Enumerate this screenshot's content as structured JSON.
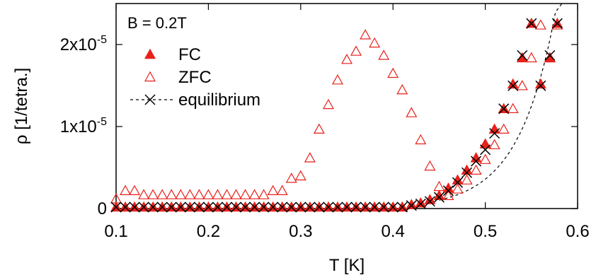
{
  "chart_data": {
    "type": "scatter",
    "annotation": "B = 0.2T",
    "xlabel": "T [K]",
    "ylabel": "ρ [1/tetra.]",
    "xlim": [
      0.1,
      0.6
    ],
    "ylim": [
      0,
      2.5e-05
    ],
    "grid": false,
    "legend_position": "top-left",
    "x_ticks": [
      {
        "value": 0.1,
        "label": "0.1"
      },
      {
        "value": 0.2,
        "label": "0.2"
      },
      {
        "value": 0.3,
        "label": "0.3"
      },
      {
        "value": 0.4,
        "label": "0.4"
      },
      {
        "value": 0.5,
        "label": "0.5"
      },
      {
        "value": 0.6,
        "label": "0.6"
      }
    ],
    "y_ticks": [
      {
        "value": 0,
        "mantissa": "0",
        "exponent": ""
      },
      {
        "value": 1e-05,
        "mantissa": "1x10",
        "exponent": "-5"
      },
      {
        "value": 2e-05,
        "mantissa": "2x10",
        "exponent": "-5"
      }
    ],
    "colors": {
      "fc": "#e8211a",
      "zfc": "#e8211a",
      "equilibrium": "#000000"
    },
    "series": [
      {
        "name": "FC",
        "marker": "filled-triangle",
        "x": [
          0.1,
          0.11,
          0.12,
          0.13,
          0.14,
          0.15,
          0.16,
          0.17,
          0.18,
          0.19,
          0.2,
          0.21,
          0.22,
          0.23,
          0.24,
          0.25,
          0.26,
          0.27,
          0.28,
          0.29,
          0.3,
          0.31,
          0.32,
          0.33,
          0.34,
          0.35,
          0.36,
          0.37,
          0.38,
          0.39,
          0.4,
          0.41,
          0.42,
          0.43,
          0.44,
          0.45,
          0.46,
          0.47,
          0.48,
          0.49,
          0.5,
          0.51,
          0.52,
          0.53,
          0.54,
          0.55,
          0.56,
          0.57,
          0.578
        ],
        "y": [
          0,
          0,
          0,
          0,
          0,
          0,
          0,
          0,
          0,
          0,
          0,
          0,
          0,
          0,
          0,
          0,
          0,
          0,
          0,
          0,
          0,
          0,
          0,
          0,
          0,
          0,
          0,
          0,
          0,
          0,
          0,
          0,
          3e-07,
          5e-07,
          9e-07,
          1.4e-06,
          2.3e-06,
          3.3e-06,
          4.5e-06,
          6e-06,
          7.7e-06,
          9.5e-06,
          1.2e-05,
          1.5e-05,
          1.82e-05,
          2.24e-05,
          1.5e-05,
          1.82e-05,
          2.24e-05
        ]
      },
      {
        "name": "ZFC",
        "marker": "open-triangle",
        "x": [
          0.1,
          0.11,
          0.12,
          0.13,
          0.14,
          0.15,
          0.16,
          0.17,
          0.18,
          0.19,
          0.2,
          0.21,
          0.22,
          0.23,
          0.24,
          0.25,
          0.26,
          0.27,
          0.28,
          0.29,
          0.3,
          0.31,
          0.32,
          0.33,
          0.34,
          0.35,
          0.36,
          0.37,
          0.38,
          0.39,
          0.4,
          0.41,
          0.42,
          0.43,
          0.44,
          0.45,
          0.46,
          0.47,
          0.48,
          0.49,
          0.5,
          0.51,
          0.52,
          0.53,
          0.54,
          0.55,
          0.56,
          0.57,
          0.578
        ],
        "y": [
          1e-06,
          2e-06,
          2e-06,
          1.5e-06,
          1.5e-06,
          1.5e-06,
          1.5e-06,
          1.5e-06,
          1.5e-06,
          1.5e-06,
          1.5e-06,
          1.5e-06,
          1.5e-06,
          1.5e-06,
          1.5e-06,
          1.5e-06,
          1.5e-06,
          2e-06,
          2e-06,
          3.5e-06,
          3.8e-06,
          6e-06,
          9.5e-06,
          1.25e-05,
          1.55e-05,
          1.8e-05,
          1.9e-05,
          2.1e-05,
          2e-05,
          1.85e-05,
          1.63e-05,
          1.43e-05,
          1.15e-05,
          8.2e-06,
          5e-06,
          2.5e-06,
          1.4e-06,
          2.2e-06,
          3.3e-06,
          4.5e-06,
          5.8e-06,
          7.6e-06,
          9.5e-06,
          1.2e-05,
          1.48e-05,
          1.82e-05,
          2.22e-05,
          1.82e-05,
          2.22e-05
        ]
      },
      {
        "name": "equilibrium",
        "marker": "cross",
        "line": "dashed",
        "x": [
          0.1,
          0.11,
          0.12,
          0.13,
          0.14,
          0.15,
          0.16,
          0.17,
          0.18,
          0.19,
          0.2,
          0.21,
          0.22,
          0.23,
          0.24,
          0.25,
          0.26,
          0.27,
          0.28,
          0.29,
          0.3,
          0.31,
          0.32,
          0.33,
          0.34,
          0.35,
          0.36,
          0.37,
          0.38,
          0.39,
          0.4,
          0.41,
          0.42,
          0.43,
          0.44,
          0.45,
          0.46,
          0.47,
          0.48,
          0.49,
          0.5,
          0.51,
          0.52,
          0.53,
          0.54,
          0.55,
          0.56,
          0.57,
          0.578
        ],
        "y": [
          0,
          0,
          0,
          0,
          0,
          0,
          0,
          0,
          0,
          0,
          0,
          0,
          0,
          0,
          0,
          0,
          0,
          0,
          0,
          0,
          0,
          0,
          0,
          0,
          0,
          0,
          0,
          0,
          0,
          0,
          0,
          0,
          2e-07,
          4e-07,
          7e-07,
          1.2e-06,
          2e-06,
          3e-06,
          4.2e-06,
          5.6e-06,
          7e-06,
          9e-06,
          1.2e-05,
          1.48e-05,
          1.85e-05,
          2.24e-05,
          1.48e-05,
          1.85e-05,
          2.24e-05
        ]
      }
    ]
  }
}
